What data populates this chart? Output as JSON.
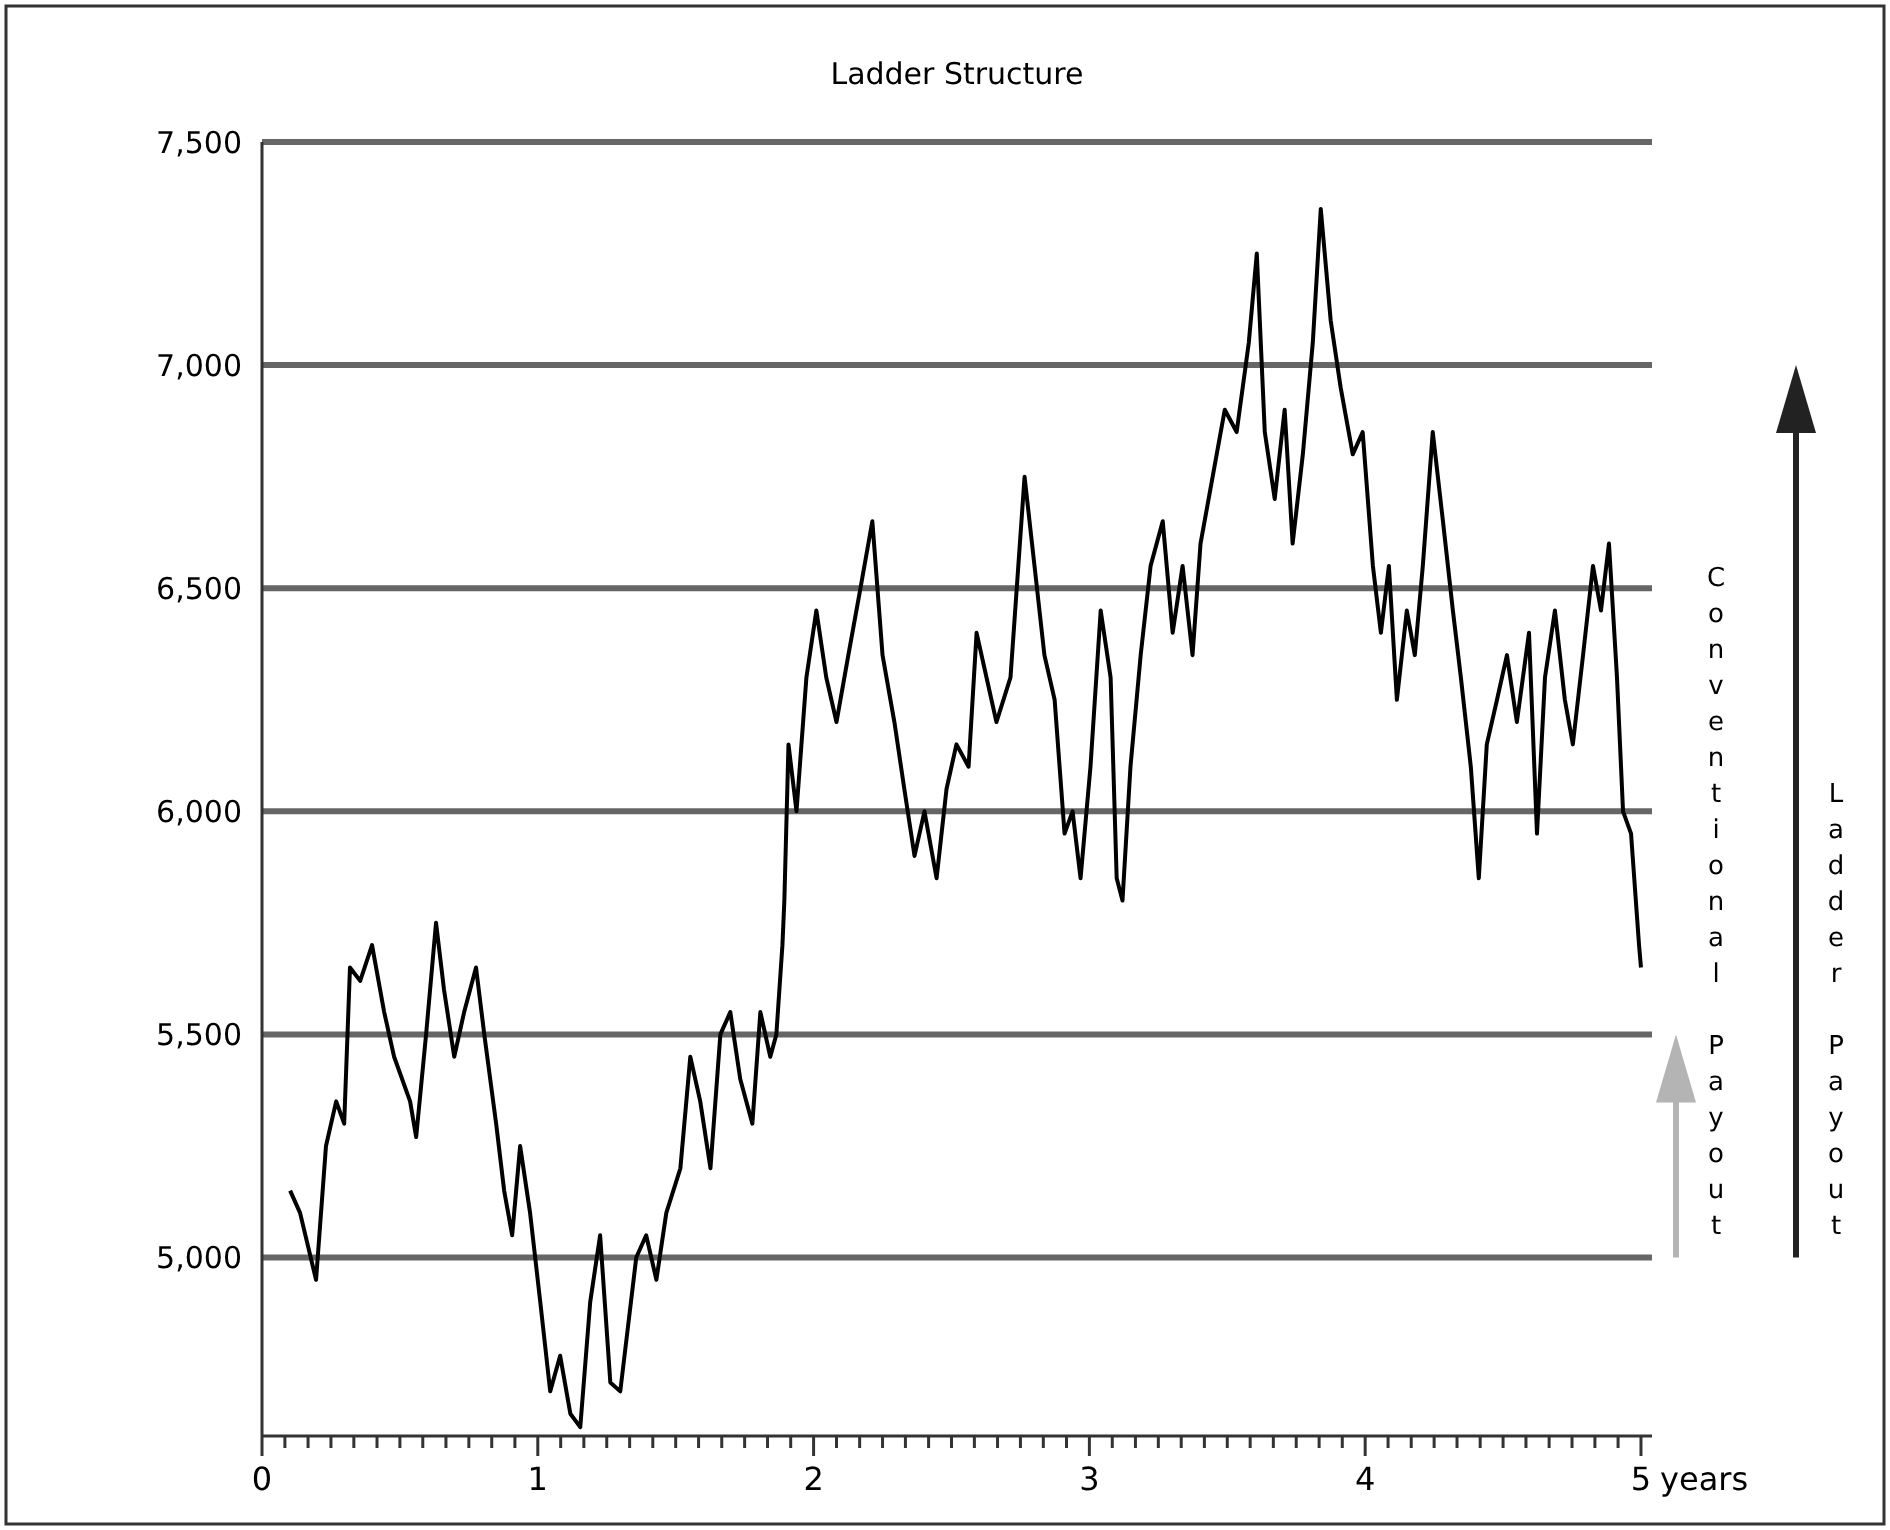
{
  "chart_data": {
    "type": "line",
    "title": "Ladder Structure",
    "xlabel": "years",
    "xlim": [
      0,
      5.04
    ],
    "ylim": [
      4600,
      7500
    ],
    "xticks": [
      0,
      {
        "value": 0.083,
        "label": null
      },
      {
        "value": 0.167,
        "label": null
      },
      {
        "value": 0.25,
        "label": null
      },
      {
        "value": 0.333,
        "label": null
      },
      {
        "value": 0.417,
        "label": null
      },
      {
        "value": 0.5,
        "label": null
      },
      {
        "value": 0.583,
        "label": null
      },
      {
        "value": 0.667,
        "label": null
      },
      {
        "value": 0.75,
        "label": null
      },
      {
        "value": 0.833,
        "label": null
      },
      {
        "value": 0.917,
        "label": null
      },
      1,
      {
        "value": 1.083,
        "label": null
      },
      {
        "value": 1.167,
        "label": null
      },
      {
        "value": 1.25,
        "label": null
      },
      {
        "value": 1.333,
        "label": null
      },
      {
        "value": 1.417,
        "label": null
      },
      {
        "value": 1.5,
        "label": null
      },
      {
        "value": 1.583,
        "label": null
      },
      {
        "value": 1.667,
        "label": null
      },
      {
        "value": 1.75,
        "label": null
      },
      {
        "value": 1.833,
        "label": null
      },
      {
        "value": 1.917,
        "label": null
      },
      2,
      {
        "value": 2.083,
        "label": null
      },
      {
        "value": 2.167,
        "label": null
      },
      {
        "value": 2.25,
        "label": null
      },
      {
        "value": 2.333,
        "label": null
      },
      {
        "value": 2.417,
        "label": null
      },
      {
        "value": 2.5,
        "label": null
      },
      {
        "value": 2.583,
        "label": null
      },
      {
        "value": 2.667,
        "label": null
      },
      {
        "value": 2.75,
        "label": null
      },
      {
        "value": 2.833,
        "label": null
      },
      {
        "value": 2.917,
        "label": null
      },
      3,
      {
        "value": 3.083,
        "label": null
      },
      {
        "value": 3.167,
        "label": null
      },
      {
        "value": 3.25,
        "label": null
      },
      {
        "value": 3.333,
        "label": null
      },
      {
        "value": 3.417,
        "label": null
      },
      {
        "value": 3.5,
        "label": null
      },
      {
        "value": 3.583,
        "label": null
      },
      {
        "value": 3.667,
        "label": null
      },
      {
        "value": 3.75,
        "label": null
      },
      {
        "value": 3.833,
        "label": null
      },
      {
        "value": 3.917,
        "label": null
      },
      4,
      {
        "value": 4.083,
        "label": null
      },
      {
        "value": 4.167,
        "label": null
      },
      {
        "value": 4.25,
        "label": null
      },
      {
        "value": 4.333,
        "label": null
      },
      {
        "value": 4.417,
        "label": null
      },
      {
        "value": 4.5,
        "label": null
      },
      {
        "value": 4.583,
        "label": null
      },
      {
        "value": 4.667,
        "label": null
      },
      {
        "value": 4.75,
        "label": null
      },
      {
        "value": 4.833,
        "label": null
      },
      {
        "value": 4.917,
        "label": null
      },
      5
    ],
    "yticks": [
      {
        "value": 5000,
        "label": "5,000"
      },
      {
        "value": 5500,
        "label": "5,500"
      },
      {
        "value": 6000,
        "label": "6,000"
      },
      {
        "value": 6500,
        "label": "6,500"
      },
      {
        "value": 7000,
        "label": "7,000"
      },
      {
        "value": 7500,
        "label": "7,500"
      }
    ],
    "grid": "y",
    "marker": "none",
    "line_style": "solid",
    "annotations": [
      "Conventional Payout",
      "Ladder Payout"
    ],
    "series": [
      {
        "color": "#000000",
        "x": [
          0.102,
          0.138,
          0.196,
          0.232,
          0.269,
          0.298,
          0.319,
          0.356,
          0.399,
          0.443,
          0.479,
          0.537,
          0.559,
          0.595,
          0.631,
          0.66,
          0.697,
          0.733,
          0.776,
          0.806,
          0.849,
          0.878,
          0.907,
          0.936,
          0.972,
          1.009,
          1.045,
          1.081,
          1.118,
          1.154,
          1.19,
          1.226,
          1.263,
          1.299,
          1.357,
          1.393,
          1.43,
          1.466,
          1.517,
          1.553,
          1.589,
          1.626,
          1.662,
          1.698,
          1.734,
          1.778,
          1.807,
          1.843,
          1.865,
          1.887,
          1.894,
          1.909,
          1.938,
          1.974,
          2.01,
          2.046,
          2.083,
          2.126,
          2.17,
          2.213,
          2.25,
          2.293,
          2.329,
          2.366,
          2.402,
          2.446,
          2.482,
          2.518,
          2.562,
          2.591,
          2.627,
          2.663,
          2.714,
          2.765,
          2.801,
          2.837,
          2.874,
          2.91,
          2.939,
          2.968,
          3.004,
          3.041,
          3.077,
          3.099,
          3.12,
          3.149,
          3.186,
          3.222,
          3.266,
          3.302,
          3.338,
          3.374,
          3.403,
          3.447,
          3.491,
          3.534,
          3.578,
          3.607,
          3.636,
          3.672,
          3.708,
          3.737,
          3.774,
          3.81,
          3.839,
          3.875,
          3.911,
          3.955,
          3.991,
          4.028,
          4.057,
          4.086,
          4.115,
          4.151,
          4.18,
          4.209,
          4.245,
          4.282,
          4.318,
          4.347,
          4.383,
          4.412,
          4.441,
          4.478,
          4.514,
          4.55,
          4.594,
          4.623,
          4.652,
          4.688,
          4.724,
          4.753,
          4.79,
          4.826,
          4.855,
          4.884,
          4.913,
          4.935,
          4.964,
          4.993,
          5.0
        ],
        "values": [
          5150,
          5100,
          4950,
          5250,
          5350,
          5300,
          5650,
          5620,
          5700,
          5550,
          5450,
          5350,
          5270,
          5500,
          5750,
          5600,
          5450,
          5550,
          5650,
          5500,
          5300,
          5150,
          5050,
          5250,
          5100,
          4900,
          4700,
          4780,
          4650,
          4620,
          4900,
          5050,
          4720,
          4700,
          5000,
          5050,
          4950,
          5100,
          5200,
          5450,
          5350,
          5200,
          5500,
          5550,
          5400,
          5300,
          5550,
          5450,
          5500,
          5700,
          5800,
          6150,
          6000,
          6300,
          6450,
          6300,
          6200,
          6350,
          6500,
          6650,
          6350,
          6200,
          6050,
          5900,
          6000,
          5850,
          6050,
          6150,
          6100,
          6400,
          6300,
          6200,
          6300,
          6750,
          6550,
          6350,
          6250,
          5950,
          6000,
          5850,
          6100,
          6450,
          6300,
          5850,
          5800,
          6100,
          6350,
          6550,
          6650,
          6400,
          6550,
          6350,
          6600,
          6750,
          6900,
          6850,
          7050,
          7250,
          6850,
          6700,
          6900,
          6600,
          6800,
          7050,
          7350,
          7100,
          6950,
          6800,
          6850,
          6550,
          6400,
          6550,
          6250,
          6450,
          6350,
          6550,
          6850,
          6650,
          6450,
          6300,
          6100,
          5850,
          6150,
          6250,
          6350,
          6200,
          6400,
          5950,
          6300,
          6450,
          6250,
          6150,
          6350,
          6550,
          6450,
          6600,
          6300,
          6000,
          5950,
          5700,
          5650
        ]
      }
    ]
  }
}
